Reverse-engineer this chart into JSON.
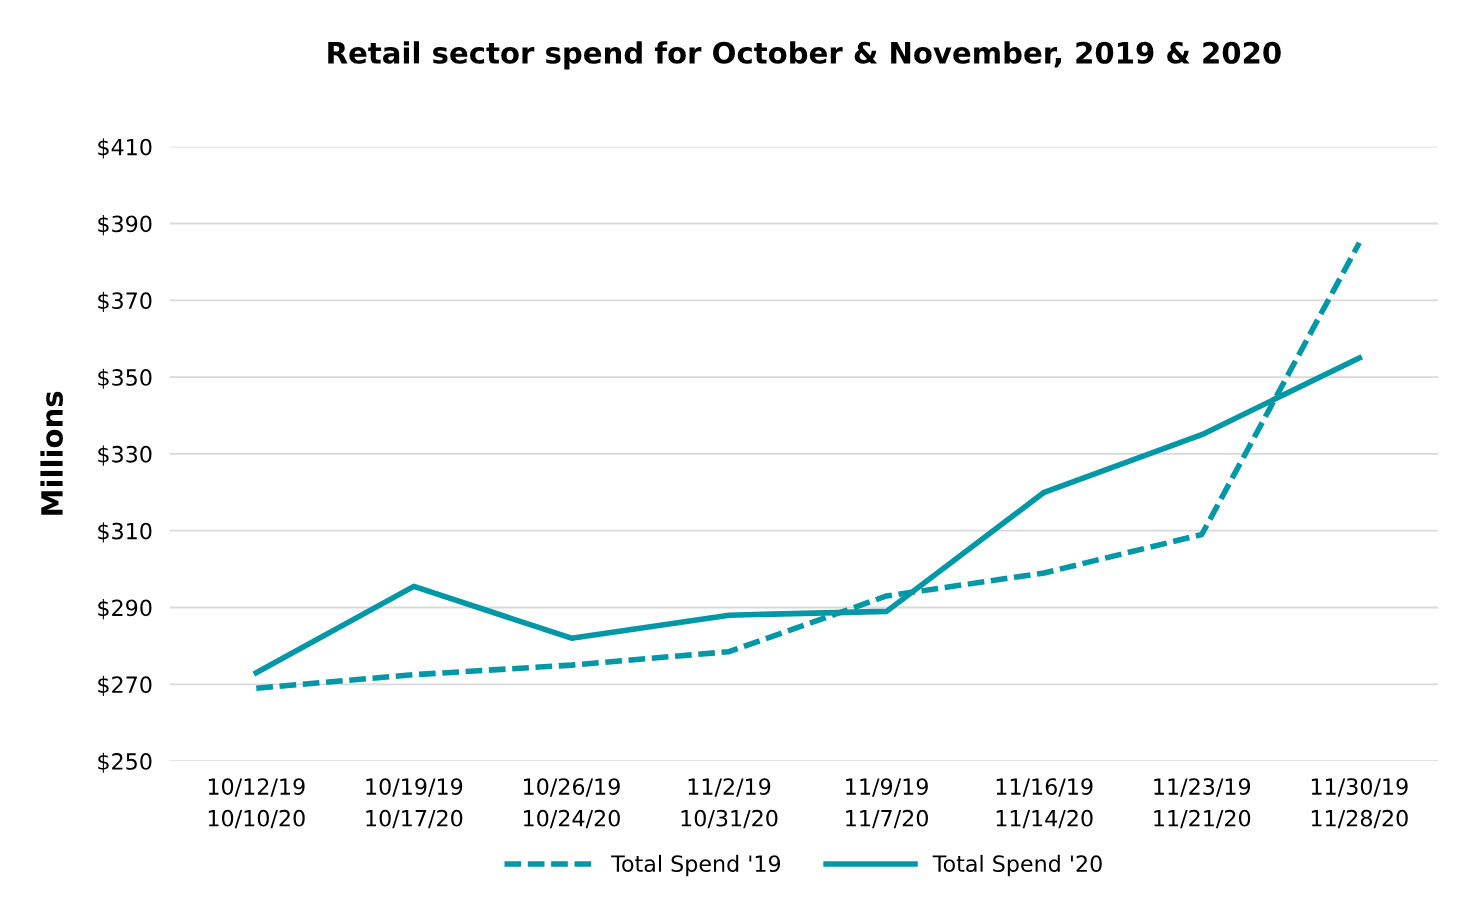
{
  "chart_data": {
    "type": "line",
    "title": "Retail sector spend for October & November, 2019 & 2020",
    "ylabel": "Millions",
    "categories": [
      "10/12/19\n10/10/20",
      "10/19/19\n10/17/20",
      "10/26/19\n10/24/20",
      "11/2/19\n10/31/20",
      "11/9/19\n11/7/20",
      "11/16/19\n11/14/20",
      "11/23/19\n11/21/20",
      "11/30/19\n11/28/20"
    ],
    "series": [
      {
        "name": "Total Spend '19",
        "color": "#0097a7",
        "line_style": "dashed",
        "values": [
          269,
          272.5,
          275,
          278.5,
          293,
          299,
          309,
          385
        ]
      },
      {
        "name": "Total Spend '20",
        "color": "#0097a7",
        "line_style": "solid",
        "values": [
          273,
          295.5,
          282,
          288,
          289,
          320,
          335,
          355
        ]
      }
    ],
    "ylim": [
      250,
      410
    ],
    "yticks": [
      {
        "value": 250,
        "label": "$250"
      },
      {
        "value": 270,
        "label": "$270"
      },
      {
        "value": 290,
        "label": "$290"
      },
      {
        "value": 310,
        "label": "$310"
      },
      {
        "value": 330,
        "label": "$330"
      },
      {
        "value": 350,
        "label": "$350"
      },
      {
        "value": 370,
        "label": "$370"
      },
      {
        "value": 390,
        "label": "$390"
      },
      {
        "value": 410,
        "label": "$410"
      }
    ],
    "grid": "y",
    "legend": "bottom",
    "marker": "none"
  }
}
